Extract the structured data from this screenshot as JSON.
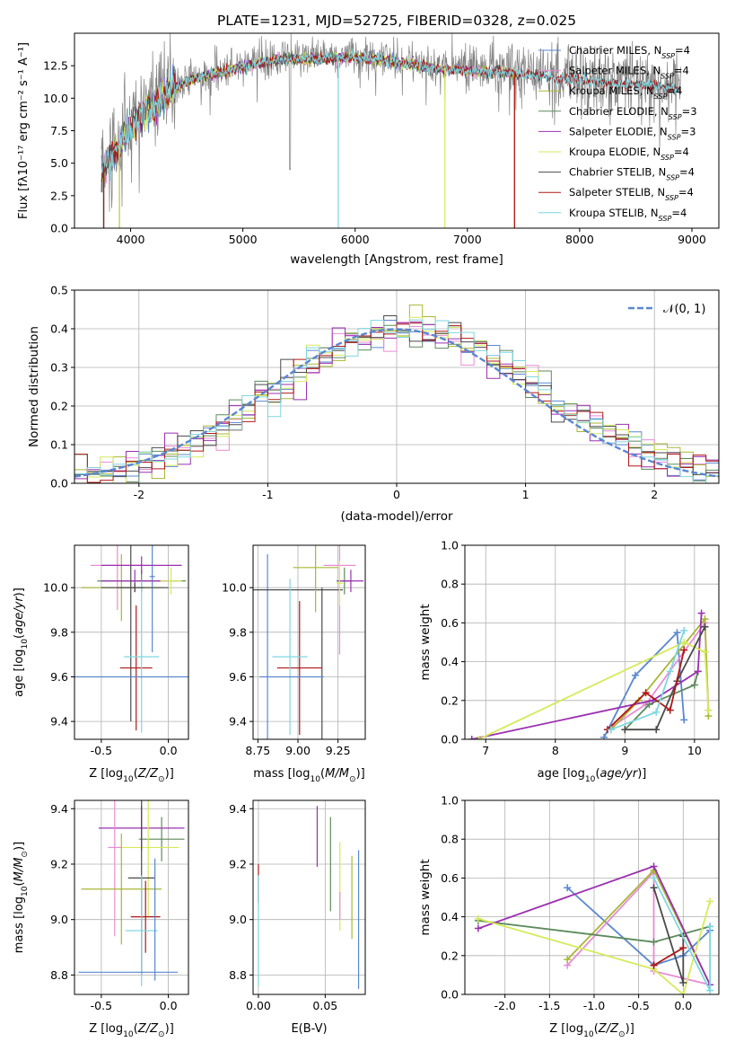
{
  "chart_data": [
    {
      "type": "line",
      "id": "spectrum",
      "title": "PLATE=1231, MJD=52725, FIBERID=0328, z=0.025",
      "xlabel": "wavelength [Angstrom, rest frame]",
      "ylabel": "Flux [f$_\\lambda$10$^{-17}$ erg cm$^{-2}$ s$^{-1}$ A$^{-1}$]",
      "ylabel_html": "Flux [fλ10⁻¹⁷ erg cm⁻² s⁻¹ A⁻¹]",
      "xlim": [
        3500,
        9240
      ],
      "ylim": [
        0,
        15
      ],
      "xticks": [
        4000,
        5000,
        6000,
        7000,
        8000,
        9000
      ],
      "yticks": [
        0.0,
        2.5,
        5.0,
        7.5,
        10.0,
        12.5
      ],
      "legend_position": "upper-right",
      "grid": false,
      "series": [
        {
          "name": "Chabrier MILES, N$_{SSP}$=4",
          "label_main": "Chabrier MILES, N",
          "label_sub": "SSP",
          "label_end": "=4",
          "color": "#5a87d0",
          "x_range": [
            3740,
            7420
          ]
        },
        {
          "name": "Salpeter MILES, N$_{SSP}$=4",
          "label_main": "Salpeter MILES, N",
          "label_sub": "SSP",
          "label_end": "=4",
          "color": "#e98bd5",
          "x_range": [
            3740,
            7420
          ]
        },
        {
          "name": "Kroupa MILES, N$_{SSP}$=4",
          "label_main": "Kroupa MILES, N",
          "label_sub": "SSP",
          "label_end": "=4",
          "color": "#a9b735",
          "x_range": [
            3740,
            7420
          ]
        },
        {
          "name": "Chabrier ELODIE, N$_{SSP}$=3",
          "label_main": "Chabrier ELODIE, N",
          "label_sub": "SSP",
          "label_end": "=3",
          "color": "#5c8a5c",
          "x_range": [
            3900,
            6800
          ]
        },
        {
          "name": "Salpeter ELODIE, N$_{SSP}$=3",
          "label_main": "Salpeter ELODIE, N",
          "label_sub": "SSP",
          "label_end": "=3",
          "color": "#9b30b0",
          "x_range": [
            3900,
            6800
          ]
        },
        {
          "name": "Kroupa ELODIE, N$_{SSP}$=4",
          "label_main": "Kroupa ELODIE, N",
          "label_sub": "SSP",
          "label_end": "=4",
          "color": "#d6ea5a",
          "x_range": [
            3900,
            6800
          ]
        },
        {
          "name": "Chabrier STELIB, N$_{SSP}$=4",
          "label_main": "Chabrier STELIB, N",
          "label_sub": "SSP",
          "label_end": "=4",
          "color": "#4a4a4a",
          "x_range": [
            3740,
            8900
          ]
        },
        {
          "name": "Salpeter STELIB, N$_{SSP}$=4",
          "label_main": "Salpeter STELIB, N",
          "label_sub": "SSP",
          "label_end": "=4",
          "color": "#b01818",
          "x_range": [
            3740,
            8900
          ]
        },
        {
          "name": "Kroupa STELIB, N$_{SSP}$=4",
          "label_main": "Kroupa STELIB, N",
          "label_sub": "SSP",
          "label_end": "=4",
          "color": "#7fd6e0",
          "x_range": [
            3740,
            8900
          ]
        }
      ],
      "data_color": "#808080",
      "data_x_range": [
        3740,
        8900
      ],
      "continuum": {
        "x": [
          3740,
          3800,
          3900,
          4000,
          4100,
          4200,
          4300,
          4400,
          4500,
          4600,
          4800,
          5000,
          5200,
          5400,
          5600,
          5800,
          6000,
          6200,
          6400,
          6600,
          6800,
          7000,
          7200,
          7400,
          7600,
          7800,
          8000,
          8200,
          8400,
          8600,
          8800,
          8900
        ],
        "y": [
          4.5,
          5.5,
          6.5,
          8.0,
          8.8,
          9.6,
          10.3,
          11.0,
          11.5,
          11.8,
          12.2,
          12.6,
          13.0,
          13.2,
          13.2,
          13.3,
          13.3,
          13.2,
          12.9,
          12.7,
          12.4,
          12.3,
          12.2,
          12.1,
          11.9,
          11.7,
          11.6,
          11.5,
          11.3,
          11.2,
          11.0,
          10.9
        ]
      },
      "drops": [
        {
          "x": 3760,
          "series": [
            0,
            1,
            2,
            6,
            7
          ]
        },
        {
          "x": 3900,
          "series": [
            3,
            4,
            5
          ]
        },
        {
          "x": 5850,
          "series": [
            8
          ]
        },
        {
          "x": 6800,
          "series": [
            5
          ]
        },
        {
          "x": 7420,
          "series": [
            0,
            1,
            2,
            7
          ]
        }
      ]
    },
    {
      "type": "line",
      "id": "residuals",
      "xlabel": "(data-model)/error",
      "ylabel": "Normed distribution",
      "xlim": [
        -2.5,
        2.5
      ],
      "ylim": [
        0,
        0.5
      ],
      "xticks": [
        -2,
        -1,
        0,
        1,
        2
      ],
      "yticks": [
        0.0,
        0.1,
        0.2,
        0.3,
        0.4,
        0.5
      ],
      "grid": true,
      "legend_position": "upper-right",
      "legend_label": "𝒩(0, 1)",
      "gaussian": {
        "mean": 0,
        "sigma": 1,
        "color": "#5a87d0",
        "style": "dashed"
      },
      "bin_width": 0.1,
      "bins_start": -2.5,
      "histogram_series": [
        0,
        1,
        2,
        3,
        4,
        5,
        6,
        7,
        8
      ]
    },
    {
      "type": "scatter",
      "id": "age-vs-Z",
      "xlabel": "Z [log$_{10}$(Z/Z$_\\odot$)]",
      "ylabel": "age  [log$_{10}$(age/yr)]",
      "xlim": [
        -0.7,
        0.15
      ],
      "ylim": [
        9.32,
        10.19
      ],
      "xticks": [
        -0.5,
        0.0
      ],
      "yticks": [
        9.4,
        9.6,
        9.8,
        10.0
      ],
      "grid": true,
      "points": [
        {
          "series": 0,
          "x": -0.12,
          "y": 10.05,
          "xerr": 0.02,
          "yerr": 0.34
        },
        {
          "series": 1,
          "x": -0.38,
          "y": 10.1,
          "xerr": 0.2,
          "yerr": 0.2
        },
        {
          "series": 2,
          "x": -0.35,
          "y": 10.0,
          "xerr": 0.3,
          "yerr": 0.15
        },
        {
          "series": 3,
          "x": -0.2,
          "y": 10.03,
          "xerr": 0.33,
          "yerr": 0.05
        },
        {
          "series": 4,
          "x": -0.25,
          "y": 10.03,
          "xerr": 0.25,
          "yerr": 0.05
        },
        {
          "series": 5,
          "x": 0.02,
          "y": 10.03,
          "xerr": 0.08,
          "yerr": 0.06
        },
        {
          "series": 6,
          "x": -0.28,
          "y": 10.0,
          "xerr": 0.1,
          "yerr": 0.6
        },
        {
          "series": 7,
          "x": -0.24,
          "y": 9.64,
          "xerr": 0.12,
          "yerr": 0.28
        },
        {
          "series": 8,
          "x": -0.2,
          "y": 9.69,
          "xerr": 0.13,
          "yerr": 0.34
        },
        {
          "series": 0,
          "x": -0.43,
          "y": 9.6,
          "xerr": 0.72,
          "yerr": 0.0
        },
        {
          "series": 4,
          "x": -0.2,
          "y": 10.1,
          "xerr": 0.3,
          "yerr": 0.04
        },
        {
          "series": 6,
          "x": -0.25,
          "y": 10.0,
          "xerr": 0.25,
          "yerr": 0.02
        }
      ]
    },
    {
      "type": "scatter",
      "id": "age-vs-mass",
      "xlabel": "mass [log$_{10}$(M/M$_\\odot$)]",
      "ylabel": "",
      "xlim": [
        8.72,
        9.42
      ],
      "ylim": [
        9.32,
        10.19
      ],
      "xticks": [
        8.75,
        9.0,
        9.25
      ],
      "yticks": [
        9.4,
        9.6,
        9.8,
        10.0
      ],
      "grid": true,
      "points": [
        {
          "series": 0,
          "x": 8.81,
          "y": 9.6,
          "xerr": 0.0,
          "yerr": 0.55
        },
        {
          "series": 6,
          "x": 9.0,
          "y": 9.99,
          "xerr": 0.28,
          "yerr": 0.0
        },
        {
          "series": 6,
          "x": 9.15,
          "y": 9.6,
          "xerr": 0.0,
          "yerr": 0.4
        },
        {
          "series": 7,
          "x": 9.01,
          "y": 9.64,
          "xerr": 0.14,
          "yerr": 0.3
        },
        {
          "series": 8,
          "x": 8.95,
          "y": 9.69,
          "xerr": 0.11,
          "yerr": 0.35
        },
        {
          "series": 2,
          "x": 9.11,
          "y": 10.09,
          "xerr": 0.14,
          "yerr": 0.2
        },
        {
          "series": 1,
          "x": 9.26,
          "y": 10.1,
          "xerr": 0.1,
          "yerr": 0.4
        },
        {
          "series": 3,
          "x": 9.29,
          "y": 10.03,
          "xerr": 0.05,
          "yerr": 0.06
        },
        {
          "series": 4,
          "x": 9.33,
          "y": 10.03,
          "xerr": 0.08,
          "yerr": 0.05
        },
        {
          "series": 5,
          "x": 9.26,
          "y": 10.02,
          "xerr": 0.02,
          "yerr": 0.1
        },
        {
          "series": 0,
          "x": 8.96,
          "y": 9.6,
          "xerr": 0.2,
          "yerr": 0.0
        }
      ]
    },
    {
      "type": "line",
      "id": "mass-weight-vs-age",
      "xlabel": "age  [log$_{10}$(age/yr)]",
      "ylabel": "mass weight",
      "xlim": [
        6.7,
        10.35
      ],
      "ylim": [
        0,
        1.0
      ],
      "xticks": [
        7,
        8,
        9,
        10
      ],
      "yticks": [
        0.0,
        0.2,
        0.4,
        0.6,
        0.8,
        1.0
      ],
      "grid": true,
      "series": [
        {
          "series": 0,
          "x": [
            8.7,
            9.15,
            9.75,
            9.85
          ],
          "y": [
            0.01,
            0.33,
            0.55,
            0.1
          ]
        },
        {
          "series": 1,
          "x": [
            8.75,
            9.3,
            10.15,
            10.2
          ],
          "y": [
            0.05,
            0.18,
            0.6,
            0.15
          ]
        },
        {
          "series": 2,
          "x": [
            8.8,
            9.2,
            10.15,
            10.2
          ],
          "y": [
            0.05,
            0.2,
            0.62,
            0.12
          ]
        },
        {
          "series": 3,
          "x": [
            9.0,
            9.35,
            10.0,
            10.05
          ],
          "y": [
            0.05,
            0.18,
            0.28,
            0.35
          ]
        },
        {
          "series": 4,
          "x": [
            6.8,
            9.4,
            10.05,
            10.1
          ],
          "y": [
            0.0,
            0.2,
            0.35,
            0.65
          ]
        },
        {
          "series": 5,
          "x": [
            6.9,
            9.85,
            10.15,
            10.2
          ],
          "y": [
            0.0,
            0.5,
            0.45,
            0.15
          ]
        },
        {
          "series": 6,
          "x": [
            9.0,
            9.45,
            9.75,
            10.15
          ],
          "y": [
            0.05,
            0.05,
            0.3,
            0.58
          ]
        },
        {
          "series": 7,
          "x": [
            8.75,
            9.3,
            9.65,
            9.85
          ],
          "y": [
            0.05,
            0.24,
            0.15,
            0.46
          ]
        },
        {
          "series": 8,
          "x": [
            8.8,
            9.45,
            9.65,
            9.85
          ],
          "y": [
            0.05,
            0.14,
            0.35,
            0.56
          ]
        }
      ]
    },
    {
      "type": "scatter",
      "id": "mass-vs-Z",
      "xlabel": "Z [log$_{10}$(Z/Z$_\\odot$)]",
      "ylabel": "mass [log$_{10}$(M/M$_\\odot$)]",
      "xlim": [
        -0.7,
        0.15
      ],
      "ylim": [
        8.73,
        9.43
      ],
      "xticks": [
        -0.5,
        0.0
      ],
      "yticks": [
        8.8,
        9.0,
        9.2,
        9.4
      ],
      "grid": true,
      "points": [
        {
          "series": 4,
          "x": -0.2,
          "y": 9.33,
          "xerr": 0.32,
          "yerr": 0.08
        },
        {
          "series": 3,
          "x": -0.05,
          "y": 9.29,
          "xerr": 0.17,
          "yerr": 0.08
        },
        {
          "series": 5,
          "x": -0.15,
          "y": 9.26,
          "xerr": 0.23,
          "yerr": 0.25
        },
        {
          "series": 1,
          "x": -0.4,
          "y": 9.26,
          "xerr": 0.05,
          "yerr": 0.32
        },
        {
          "series": 6,
          "x": -0.2,
          "y": 9.15,
          "xerr": 0.1,
          "yerr": 0.35
        },
        {
          "series": 2,
          "x": -0.35,
          "y": 9.11,
          "xerr": 0.3,
          "yerr": 0.2
        },
        {
          "series": 7,
          "x": -0.17,
          "y": 9.01,
          "xerr": 0.11,
          "yerr": 0.13
        },
        {
          "series": 8,
          "x": -0.2,
          "y": 8.96,
          "xerr": 0.12,
          "yerr": 0.2
        },
        {
          "series": 0,
          "x": -0.3,
          "y": 8.81,
          "xerr": 0.37,
          "yerr": 0.0
        },
        {
          "series": 0,
          "x": -0.1,
          "y": 9.0,
          "xerr": 0.0,
          "yerr": 0.22
        }
      ]
    },
    {
      "type": "scatter",
      "id": "mass-vs-ebv",
      "xlabel": "E(B-V)",
      "ylabel": "",
      "xlim": [
        -0.004,
        0.08
      ],
      "ylim": [
        8.73,
        9.43
      ],
      "xticks": [
        0.0,
        0.05
      ],
      "yticks": [
        8.8,
        9.0,
        9.2,
        9.4
      ],
      "grid": true,
      "points": [
        {
          "series": 7,
          "x": 0.0,
          "y": 9.13,
          "xerr": 0.0,
          "yerr": 0.07
        },
        {
          "series": 8,
          "x": 0.0,
          "y": 8.96,
          "xerr": 0.0,
          "yerr": 0.2
        },
        {
          "series": 4,
          "x": 0.044,
          "y": 9.3,
          "xerr": 0.0,
          "yerr": 0.11
        },
        {
          "series": 3,
          "x": 0.054,
          "y": 9.2,
          "xerr": 0.0,
          "yerr": 0.17
        },
        {
          "series": 5,
          "x": 0.061,
          "y": 9.12,
          "xerr": 0.0,
          "yerr": 0.16
        },
        {
          "series": 2,
          "x": 0.07,
          "y": 9.08,
          "xerr": 0.0,
          "yerr": 0.15
        },
        {
          "series": 0,
          "x": 0.075,
          "y": 9.0,
          "xerr": 0.0,
          "yerr": 0.25
        },
        {
          "series": 1,
          "x": 0.061,
          "y": 9.05,
          "xerr": 0.0,
          "yerr": 0.05
        }
      ]
    },
    {
      "type": "line",
      "id": "mass-weight-vs-Z",
      "xlabel": "Z [log$_{10}$(Z/Z$_\\odot$)]",
      "ylabel": "mass weight",
      "xlim": [
        -2.45,
        0.4
      ],
      "ylim": [
        0,
        1.0
      ],
      "xticks": [
        -2.0,
        -1.5,
        -1.0,
        -0.5,
        0.0
      ],
      "yticks": [
        0.0,
        0.2,
        0.4,
        0.6,
        0.8,
        1.0
      ],
      "grid": true,
      "series": [
        {
          "series": 0,
          "x": [
            -1.3,
            -0.33,
            0.0,
            0.3
          ],
          "y": [
            0.55,
            0.15,
            0.2,
            0.33
          ]
        },
        {
          "series": 1,
          "x": [
            -1.3,
            -0.33,
            -0.33,
            0.3
          ],
          "y": [
            0.15,
            0.63,
            0.12,
            0.05
          ]
        },
        {
          "series": 2,
          "x": [
            -1.3,
            -0.33,
            0.3
          ],
          "y": [
            0.18,
            0.64,
            0.05
          ]
        },
        {
          "series": 3,
          "x": [
            -2.3,
            -0.33,
            0.3
          ],
          "y": [
            0.38,
            0.27,
            0.35
          ]
        },
        {
          "series": 4,
          "x": [
            -2.3,
            -0.33,
            0.3
          ],
          "y": [
            0.34,
            0.66,
            0.05
          ]
        },
        {
          "series": 5,
          "x": [
            -2.3,
            -0.33,
            0.0,
            0.3
          ],
          "y": [
            0.39,
            0.13,
            0.0,
            0.48
          ]
        },
        {
          "series": 6,
          "x": [
            -0.33,
            0.0,
            0.0
          ],
          "y": [
            0.55,
            0.06,
            0.3
          ]
        },
        {
          "series": 7,
          "x": [
            -0.33,
            0.0,
            -0.33
          ],
          "y": [
            0.15,
            0.24,
            0.15
          ]
        },
        {
          "series": 8,
          "x": [
            -0.33,
            0.3,
            0.3
          ],
          "y": [
            0.6,
            0.02,
            0.35
          ]
        }
      ]
    }
  ]
}
